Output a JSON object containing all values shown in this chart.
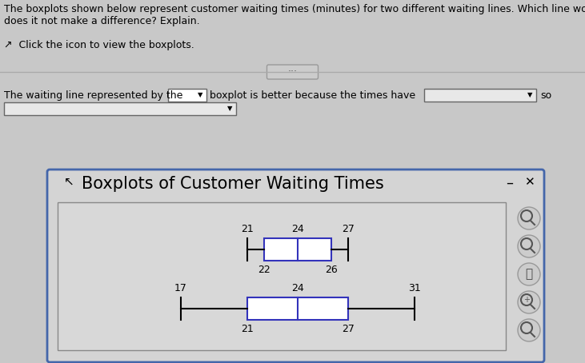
{
  "title": "Boxplots of Customer Waiting Times",
  "outer_bg": "#c8c8c8",
  "window_bg": "#d4d4d4",
  "plot_bg": "#d8d8d8",
  "box_color": "#3333bb",
  "box1": {
    "min": 21,
    "q1": 22,
    "median": 24,
    "q3": 26,
    "max": 27
  },
  "box2": {
    "min": 17,
    "q1": 21,
    "median": 24,
    "q3": 27,
    "max": 31
  },
  "xlim": [
    13,
    35
  ],
  "question_line1": "The boxplots shown below represent customer waiting times (minutes) for two different waiting lines. Which line would you prefer,",
  "question_line2": "does it not make a difference? Explain.",
  "click_text": "Click the icon to view the boxplots.",
  "answer_text1": "The waiting line represented by the",
  "answer_text2": "boxplot is better because the times have",
  "answer_so": "so",
  "title_fontsize": 15,
  "annot_fontsize": 9,
  "text_fontsize": 9,
  "window_border_color": "#4466aa",
  "inner_border_color": "#888888"
}
